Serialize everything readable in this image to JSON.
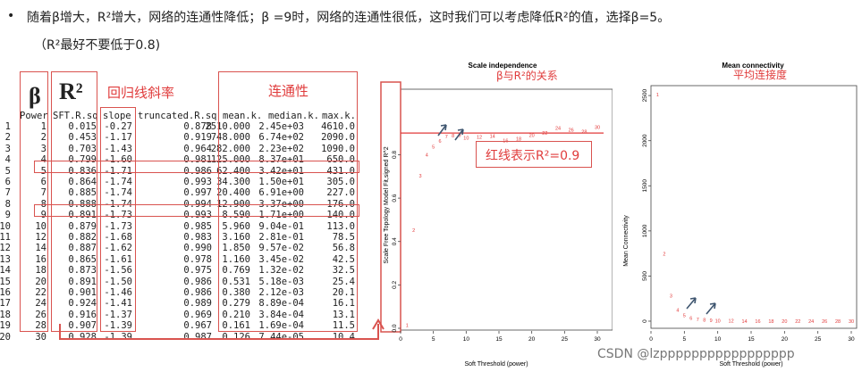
{
  "text": {
    "bullet": "•",
    "line1": "随着β增大，R²增大，网络的连通性降低；β =9时，网络的连通性很低，这时我们可以考虑降低R²的值，选择β=5。",
    "line2": "（R²最好不要低于0.8)",
    "beta_label": "β",
    "r2_label": "R²",
    "slope_label": "回归线斜率",
    "conn_label": "连通性",
    "beta_r2_relation": "β与R²的关系",
    "red_line_note": "红线表示R²=0.9",
    "mean_conn_note": "平均连接度",
    "watermark": "CSDN @lzppppppppppppppppp"
  },
  "table": {
    "headers": [
      "Power",
      "SFT.R.sq",
      "slope",
      "truncated.R.sq",
      "mean.k.",
      "median.k.",
      "max.k."
    ],
    "rows": [
      [
        "1",
        "1",
        "0.015",
        "-0.27",
        "0.878",
        "2510.000",
        "2.45e+03",
        "4610.0"
      ],
      [
        "2",
        "2",
        "0.453",
        "-1.17",
        "0.919",
        "748.000",
        "6.74e+02",
        "2090.0"
      ],
      [
        "3",
        "3",
        "0.703",
        "-1.43",
        "0.964",
        "282.000",
        "2.23e+02",
        "1090.0"
      ],
      [
        "4",
        "4",
        "0.799",
        "-1.60",
        "0.981",
        "125.000",
        "8.37e+01",
        "650.0"
      ],
      [
        "5",
        "5",
        "0.836",
        "-1.71",
        "0.986",
        "62.400",
        "3.42e+01",
        "431.0"
      ],
      [
        "6",
        "6",
        "0.864",
        "-1.74",
        "0.993",
        "34.300",
        "1.50e+01",
        "305.0"
      ],
      [
        "7",
        "7",
        "0.885",
        "-1.74",
        "0.997",
        "20.400",
        "6.91e+00",
        "227.0"
      ],
      [
        "8",
        "8",
        "0.888",
        "-1.74",
        "0.994",
        "12.900",
        "3.37e+00",
        "176.0"
      ],
      [
        "9",
        "9",
        "0.891",
        "-1.73",
        "0.993",
        "8.590",
        "1.71e+00",
        "140.0"
      ],
      [
        "10",
        "10",
        "0.879",
        "-1.73",
        "0.985",
        "5.960",
        "9.04e-01",
        "113.0"
      ],
      [
        "11",
        "12",
        "0.882",
        "-1.68",
        "0.983",
        "3.160",
        "2.81e-01",
        "78.5"
      ],
      [
        "12",
        "14",
        "0.887",
        "-1.62",
        "0.990",
        "1.850",
        "9.57e-02",
        "56.8"
      ],
      [
        "13",
        "16",
        "0.865",
        "-1.61",
        "0.978",
        "1.160",
        "3.45e-02",
        "42.5"
      ],
      [
        "14",
        "18",
        "0.873",
        "-1.56",
        "0.975",
        "0.769",
        "1.32e-02",
        "32.5"
      ],
      [
        "15",
        "20",
        "0.891",
        "-1.50",
        "0.986",
        "0.531",
        "5.18e-03",
        "25.4"
      ],
      [
        "16",
        "22",
        "0.901",
        "-1.46",
        "0.986",
        "0.380",
        "2.12e-03",
        "20.1"
      ],
      [
        "17",
        "24",
        "0.924",
        "-1.41",
        "0.989",
        "0.279",
        "8.89e-04",
        "16.1"
      ],
      [
        "18",
        "26",
        "0.916",
        "-1.37",
        "0.969",
        "0.210",
        "3.84e-04",
        "13.1"
      ],
      [
        "19",
        "28",
        "0.907",
        "-1.39",
        "0.967",
        "0.161",
        "1.69e-04",
        "11.5"
      ],
      [
        "20",
        "30",
        "0.928",
        "-1.39",
        "0.987",
        "0.126",
        "7.44e-05",
        "10.4"
      ]
    ]
  },
  "chart_data": [
    {
      "type": "scatter",
      "title": "Scale independence",
      "xlabel": "Soft Threshold (power)",
      "ylabel": "Scale Free Topology Model Fit,signed R^2",
      "xlim": [
        0,
        30
      ],
      "ylim": [
        0,
        0.95
      ],
      "x_ticks": [
        "0",
        "5",
        "10",
        "15",
        "20",
        "25",
        "30"
      ],
      "y_ticks": [
        "0.0",
        "0.2",
        "0.4",
        "0.6",
        "0.8"
      ],
      "reference_line_y": 0.9,
      "point_labels": [
        "1",
        "2",
        "3",
        "4",
        "5",
        "6",
        "7",
        "8",
        "9",
        "10",
        "12",
        "14",
        "16",
        "18",
        "20",
        "22",
        "24",
        "26",
        "28",
        "30"
      ],
      "x": [
        1,
        2,
        3,
        4,
        5,
        6,
        7,
        8,
        9,
        10,
        12,
        14,
        16,
        18,
        20,
        22,
        24,
        26,
        28,
        30
      ],
      "y": [
        0.015,
        0.453,
        0.703,
        0.799,
        0.836,
        0.864,
        0.885,
        0.888,
        0.891,
        0.879,
        0.882,
        0.887,
        0.865,
        0.873,
        0.891,
        0.901,
        0.924,
        0.916,
        0.907,
        0.928
      ]
    },
    {
      "type": "scatter",
      "title": "Mean connectivity",
      "xlabel": "Soft Threshold (power)",
      "ylabel": "Mean Connectivity",
      "xlim": [
        0,
        30
      ],
      "ylim": [
        0,
        2600
      ],
      "x_ticks": [
        "0",
        "5",
        "10",
        "15",
        "20",
        "25",
        "30"
      ],
      "y_ticks": [
        "0",
        "500",
        "1000",
        "1500",
        "2000",
        "2500"
      ],
      "point_labels": [
        "1",
        "2",
        "3",
        "4",
        "5",
        "6",
        "7",
        "8",
        "9",
        "10",
        "12",
        "14",
        "16",
        "18",
        "20",
        "22",
        "24",
        "26",
        "28",
        "30"
      ],
      "x": [
        1,
        2,
        3,
        4,
        5,
        6,
        7,
        8,
        9,
        10,
        12,
        14,
        16,
        18,
        20,
        22,
        24,
        26,
        28,
        30
      ],
      "y": [
        2510,
        748,
        282,
        125,
        62.4,
        34.3,
        20.4,
        12.9,
        8.59,
        5.96,
        3.16,
        1.85,
        1.16,
        0.769,
        0.531,
        0.38,
        0.279,
        0.21,
        0.161,
        0.126
      ]
    }
  ],
  "colors": {
    "accent_red": "#e03c3c",
    "point_red": "#e23a3a",
    "box_red": "#d9534f",
    "arrow": "#3f5670"
  }
}
